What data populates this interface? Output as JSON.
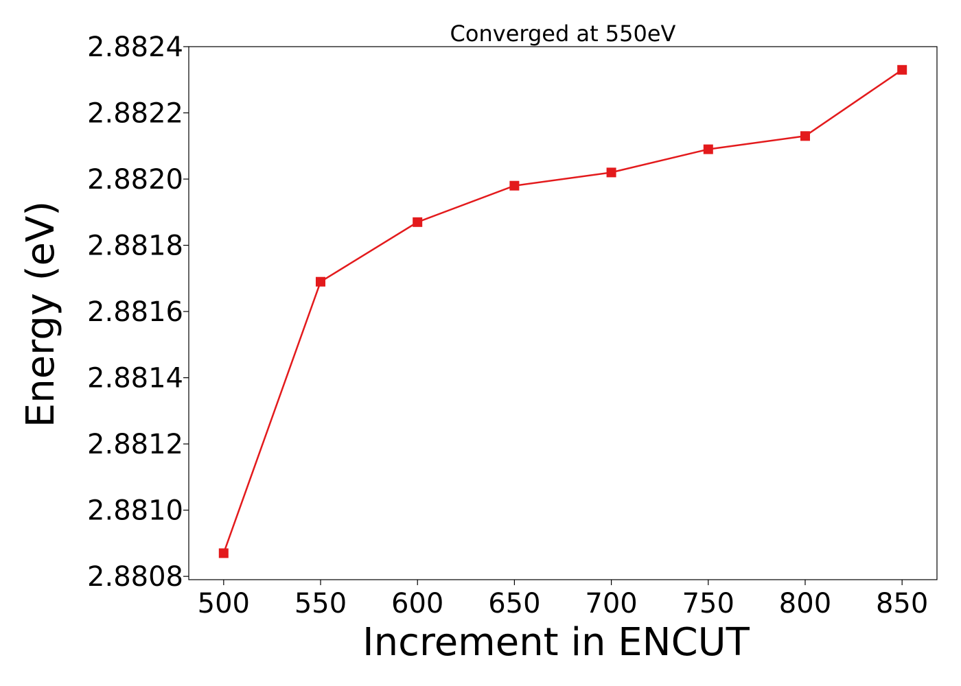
{
  "chart_data": {
    "type": "line",
    "title": "Converged at 550eV",
    "xlabel": "Increment in ENCUT",
    "ylabel": "Energy (eV)",
    "x": [
      500,
      550,
      600,
      650,
      700,
      750,
      800,
      850
    ],
    "series": [
      {
        "values": [
          2.88087,
          2.88169,
          2.88187,
          2.88198,
          2.88202,
          2.88209,
          2.88213,
          2.88233
        ],
        "color": "#e31a1c",
        "marker": "square"
      }
    ],
    "xticks": [
      "500",
      "550",
      "600",
      "650",
      "700",
      "750",
      "800",
      "850"
    ],
    "yticks": [
      "2.8808",
      "2.8810",
      "2.8812",
      "2.8814",
      "2.8816",
      "2.8818",
      "2.8820",
      "2.8822",
      "2.8824"
    ],
    "xlim": [
      482,
      868
    ],
    "ylim": [
      2.88079,
      2.8824
    ],
    "grid": false,
    "legend": "none"
  }
}
